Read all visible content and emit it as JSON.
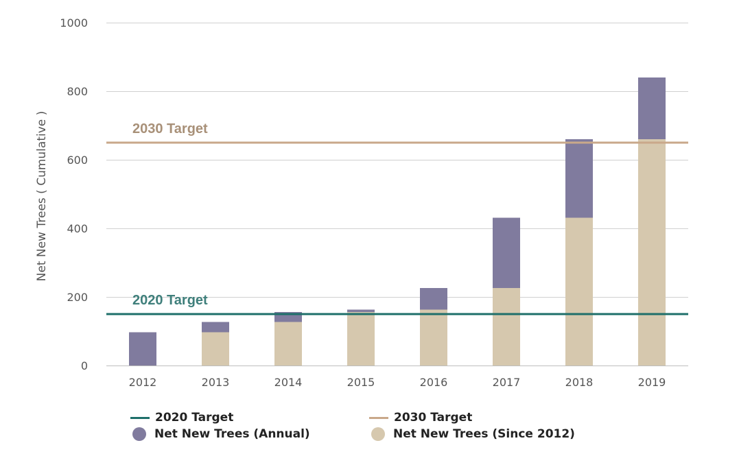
{
  "chart_data": {
    "type": "bar",
    "stacked": true,
    "categories": [
      "2012",
      "2013",
      "2014",
      "2015",
      "2016",
      "2017",
      "2018",
      "2019"
    ],
    "series": [
      {
        "name": "Net New Trees (Since 2012)",
        "color": "#d6c8ae",
        "values": [
          0,
          97,
          127,
          156,
          163,
          226,
          431,
          660
        ]
      },
      {
        "name": "Net New Trees (Annual)",
        "color": "#807b9e",
        "values": [
          97,
          30,
          29,
          7,
          63,
          205,
          229,
          180
        ]
      }
    ],
    "targets": [
      {
        "name": "2020 Target",
        "value": 150,
        "color": "#1e6f6a",
        "label_color": "#3f7f7b"
      },
      {
        "name": "2030 Target",
        "value": 650,
        "color": "#c9a88a",
        "label_color": "#a89078"
      }
    ],
    "ylabel": "Net New Trees ( Cumulative )",
    "xlabel": "",
    "ylim": [
      0,
      1000
    ],
    "yticks": [
      0,
      200,
      400,
      600,
      800,
      1000
    ],
    "grid": true,
    "legend_position": "bottom"
  },
  "legend": {
    "target_2020": "2020 Target",
    "target_2030": "2030 Target",
    "annual": "Net New Trees (Annual)",
    "since_2012": "Net New Trees (Since 2012)"
  }
}
